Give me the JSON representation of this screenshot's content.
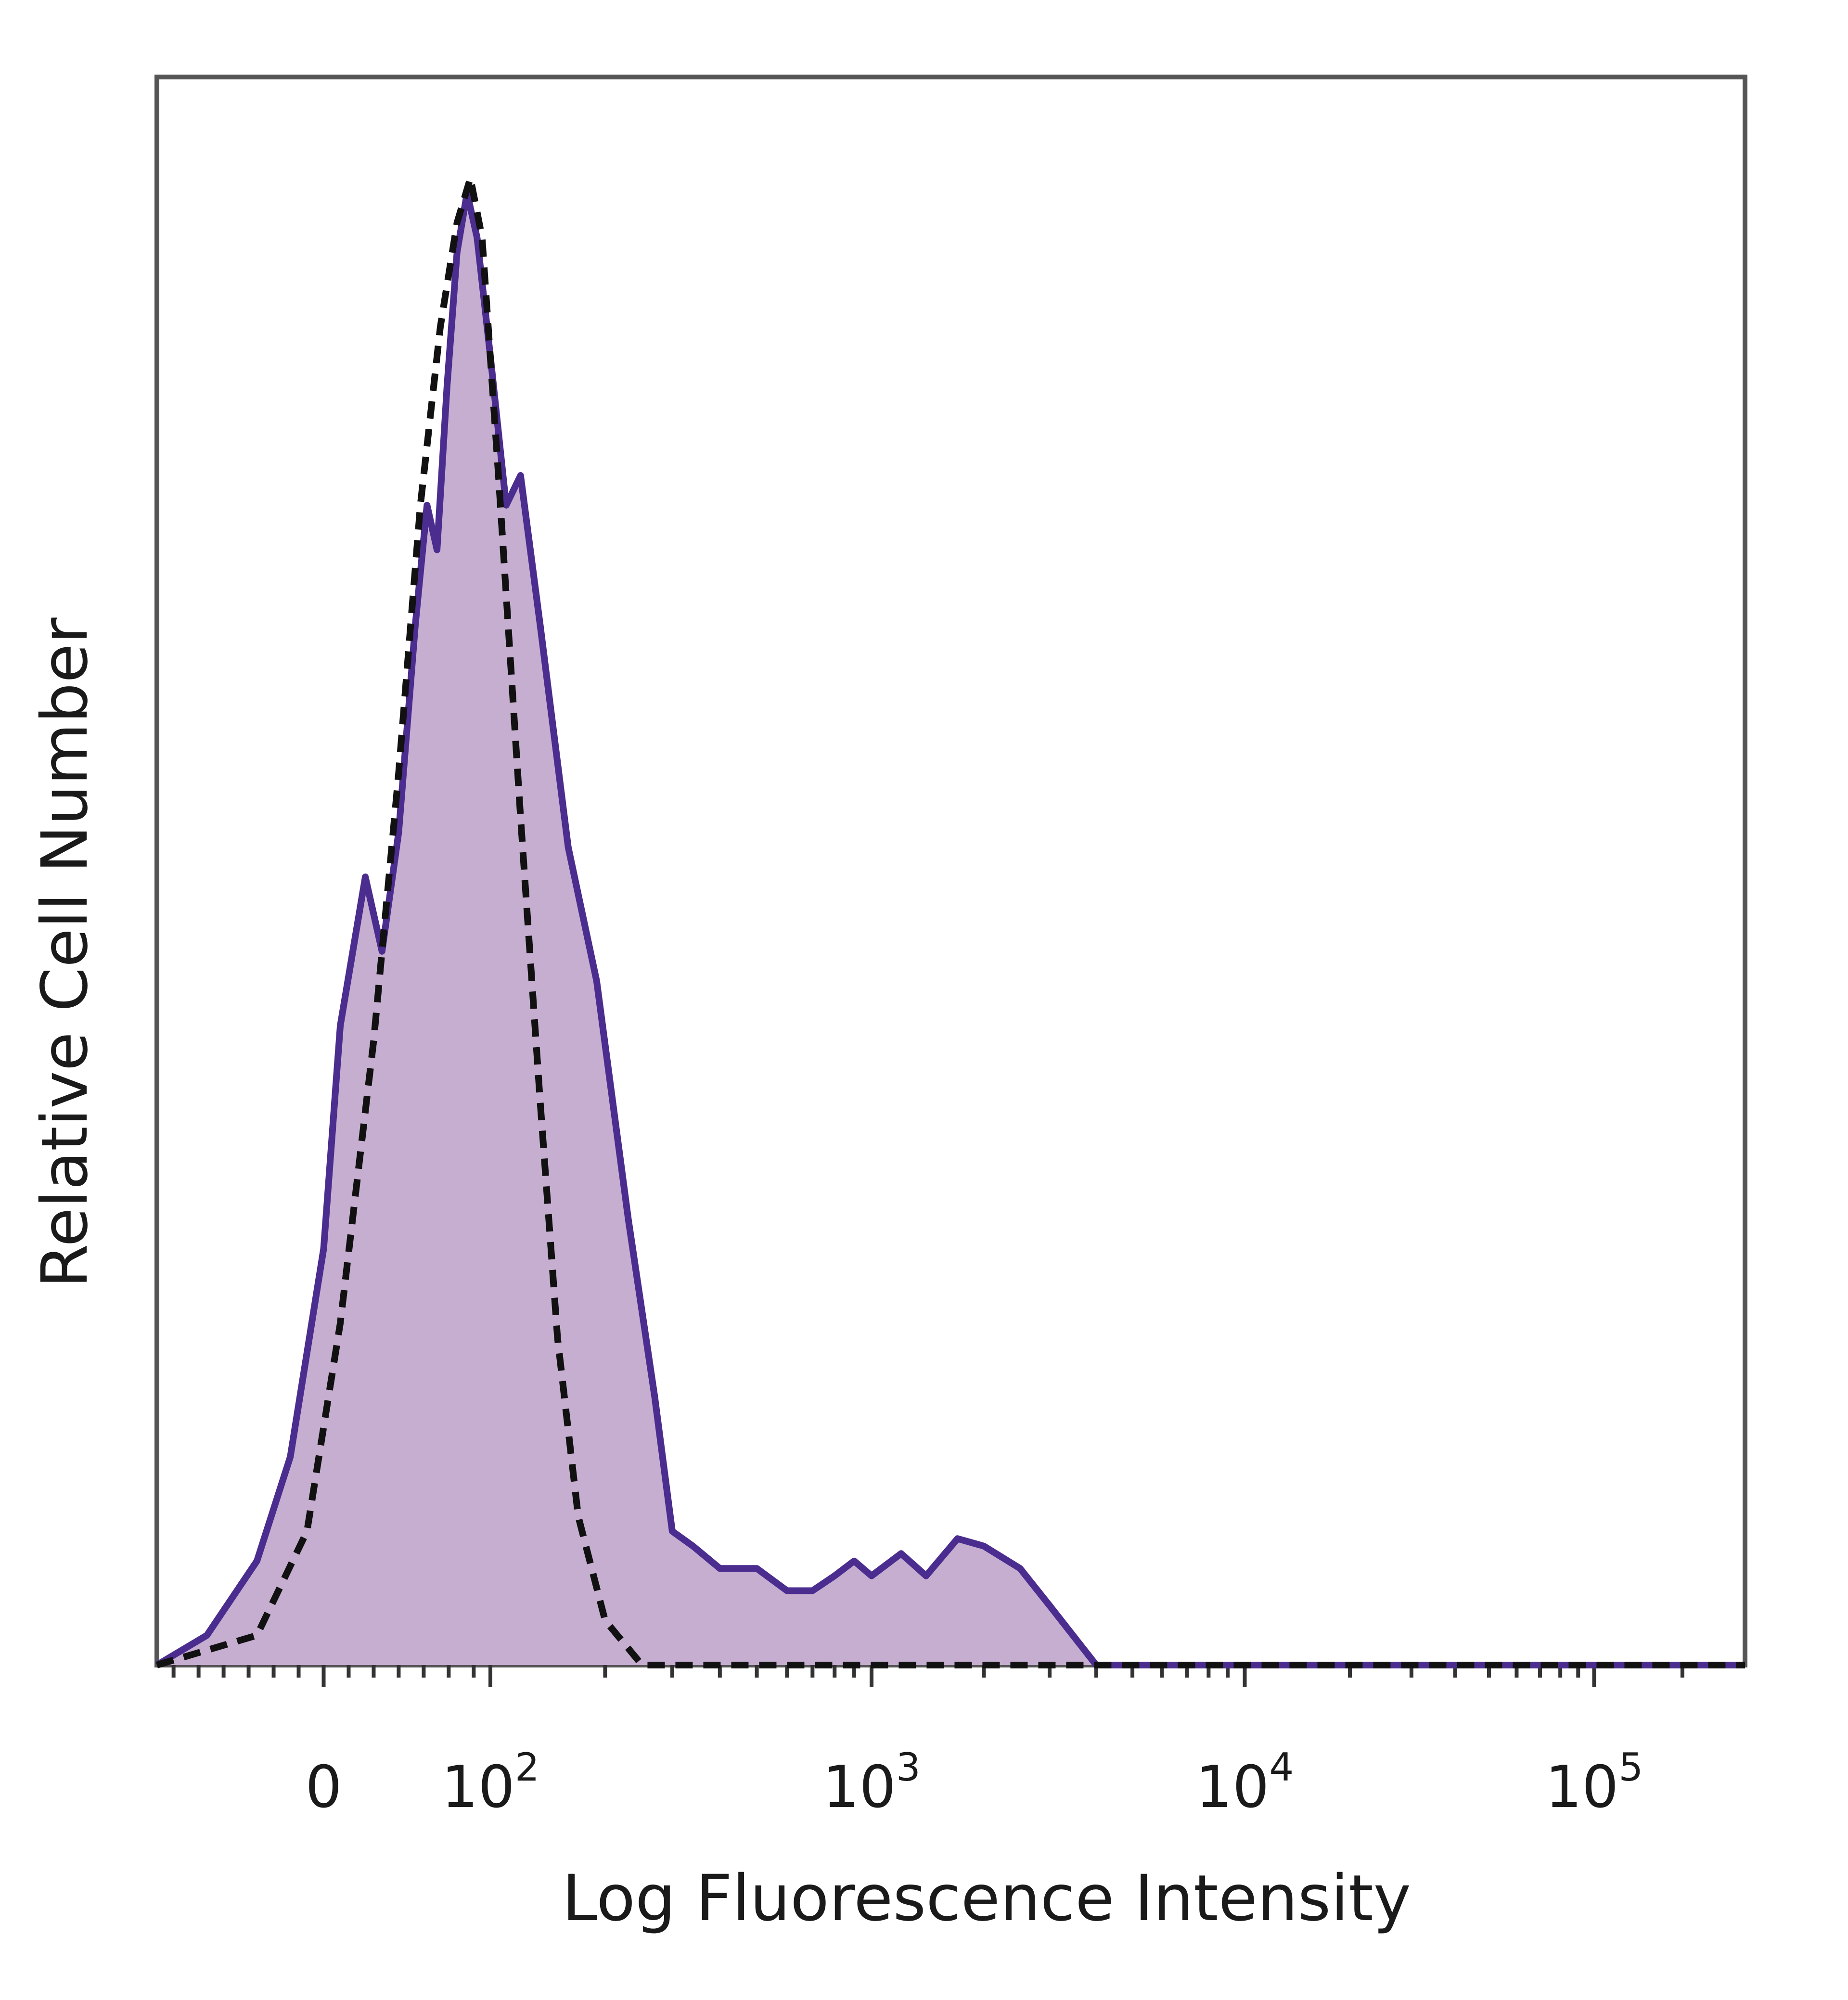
{
  "chart_data": {
    "type": "area",
    "xlabel": "Log Fluorescence Intensity",
    "ylabel": "Relative Cell Number",
    "x_scale": "biexponential",
    "xlim": [
      -100,
      200000
    ],
    "ylim": [
      0,
      1
    ],
    "grid": false,
    "tick_labels": [
      {
        "value": 0,
        "base": "0",
        "exp": ""
      },
      {
        "value": 100,
        "base": "10",
        "exp": "2"
      },
      {
        "value": 1000,
        "base": "10",
        "exp": "3"
      },
      {
        "value": 10000,
        "base": "10",
        "exp": "4"
      },
      {
        "value": 100000,
        "base": "10",
        "exp": "5"
      }
    ],
    "series": [
      {
        "style": "filled-solid",
        "fill_color": "#c6aed0",
        "line_color": "#4b2c8f",
        "points": [
          [
            -100,
            0.0
          ],
          [
            -70,
            0.02
          ],
          [
            -40,
            0.07
          ],
          [
            -20,
            0.14
          ],
          [
            0,
            0.28
          ],
          [
            10,
            0.43
          ],
          [
            25,
            0.53
          ],
          [
            35,
            0.48
          ],
          [
            45,
            0.56
          ],
          [
            55,
            0.7
          ],
          [
            62,
            0.78
          ],
          [
            68,
            0.75
          ],
          [
            74,
            0.86
          ],
          [
            80,
            0.95
          ],
          [
            86,
            0.99
          ],
          [
            92,
            0.96
          ],
          [
            100,
            0.88
          ],
          [
            110,
            0.78
          ],
          [
            120,
            0.8
          ],
          [
            135,
            0.7
          ],
          [
            160,
            0.55
          ],
          [
            190,
            0.46
          ],
          [
            230,
            0.3
          ],
          [
            270,
            0.18
          ],
          [
            300,
            0.09
          ],
          [
            340,
            0.08
          ],
          [
            400,
            0.065
          ],
          [
            500,
            0.065
          ],
          [
            600,
            0.05
          ],
          [
            700,
            0.05
          ],
          [
            800,
            0.06
          ],
          [
            900,
            0.07
          ],
          [
            1000,
            0.06
          ],
          [
            1200,
            0.075
          ],
          [
            1400,
            0.06
          ],
          [
            1700,
            0.085
          ],
          [
            2000,
            0.08
          ],
          [
            2500,
            0.065
          ],
          [
            3000,
            0.04
          ],
          [
            4000,
            0.0
          ],
          [
            100000,
            0.0
          ],
          [
            200000,
            0.0
          ]
        ]
      },
      {
        "style": "dashed",
        "line_color": "#111111",
        "points": [
          [
            -100,
            0.0
          ],
          [
            -40,
            0.02
          ],
          [
            -10,
            0.09
          ],
          [
            10,
            0.23
          ],
          [
            30,
            0.42
          ],
          [
            45,
            0.6
          ],
          [
            58,
            0.78
          ],
          [
            70,
            0.9
          ],
          [
            80,
            0.97
          ],
          [
            88,
            1.0
          ],
          [
            95,
            0.96
          ],
          [
            105,
            0.8
          ],
          [
            120,
            0.57
          ],
          [
            135,
            0.38
          ],
          [
            150,
            0.22
          ],
          [
            170,
            0.1
          ],
          [
            200,
            0.03
          ],
          [
            250,
            0.0
          ],
          [
            200000,
            0.0
          ]
        ]
      }
    ]
  }
}
